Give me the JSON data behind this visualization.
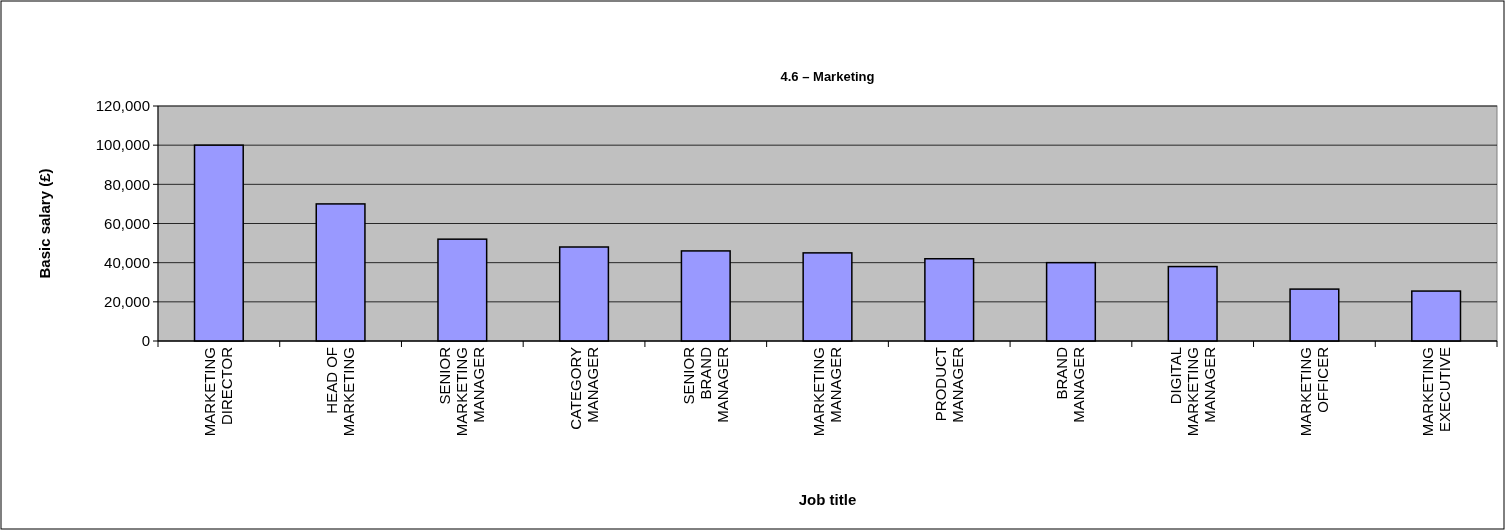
{
  "chart_data": {
    "type": "bar",
    "title": "4.6 – Marketing",
    "xlabel": "Job title",
    "ylabel": "Basic salary (£)",
    "categories": [
      "MARKETING\nDIRECTOR",
      "HEAD OF\nMARKETING",
      "SENIOR\nMARKETING\nMANAGER",
      "CATEGORY\nMANAGER",
      "SENIOR\nBRAND\nMANAGER",
      "MARKETING\nMANAGER",
      "PRODUCT\nMANAGER",
      "BRAND\nMANAGER",
      "DIGITAL\nMARKETING\nMANAGER",
      "MARKETING\nOFFICER",
      "MARKETING\nEXECUTIVE"
    ],
    "values": [
      100000,
      70000,
      52000,
      48000,
      46000,
      45000,
      42000,
      40000,
      38000,
      26500,
      25500
    ],
    "color": "#9999ff",
    "ylim": [
      0,
      120000
    ],
    "yticks": [
      {
        "value": 0,
        "label": "0"
      },
      {
        "value": 20000,
        "label": "20,000"
      },
      {
        "value": 40000,
        "label": "40,000"
      },
      {
        "value": 60000,
        "label": "60,000"
      },
      {
        "value": 80000,
        "label": "80,000"
      },
      {
        "value": 100000,
        "label": "100,000"
      },
      {
        "value": 120000,
        "label": "120,000"
      }
    ],
    "grid": "y"
  }
}
